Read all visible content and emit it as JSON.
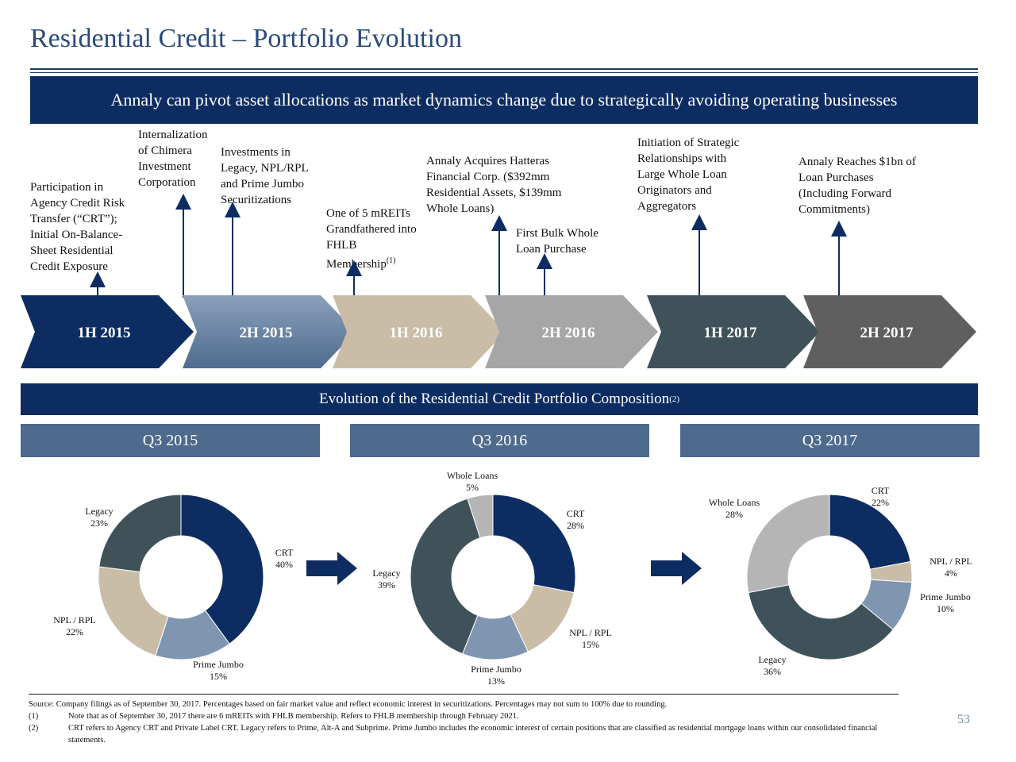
{
  "title": "Residential Credit – Portfolio Evolution",
  "banner": "Annaly can pivot asset allocations as market dynamics change due to strategically avoiding operating businesses",
  "annotations": [
    "Participation in\nAgency Credit Risk\nTransfer (“CRT”);\nInitial On-Balance-\nSheet Residential\nCredit Exposure",
    "Internalization\nof Chimera\nInvestment\nCorporation",
    "Investments in\nLegacy, NPL/RPL\nand Prime Jumbo\nSecuritizations",
    "One of 5 mREITs\nGrandfathered into\nFHLB\nMembership",
    "Annaly Acquires Hatteras\nFinancial Corp. ($392mm\nResidential Assets, $139mm\nWhole Loans)",
    "First Bulk Whole\nLoan Purchase",
    "Initiation of Strategic\nRelationships with\nLarge Whole Loan\nOriginators and\nAggregators",
    "Annaly Reaches $1bn of\nLoan Purchases\n(Including Forward\nCommitments)"
  ],
  "annotation_footnote": "(1)",
  "timeline": [
    {
      "label": "1H 2015",
      "color": "#0d2d62"
    },
    {
      "label": "2H 2015",
      "color": "#6d87a6"
    },
    {
      "label": "1H 2016",
      "color": "#c9bda8"
    },
    {
      "label": "2H 2016",
      "color": "#a6a6a6"
    },
    {
      "label": "1H 2017",
      "color": "#3f5259"
    },
    {
      "label": "2H 2017",
      "color": "#5f5f5f"
    }
  ],
  "section_title": "Evolution of the Residential Credit Portfolio Composition",
  "section_footnote": "(2)",
  "colors": {
    "CRT": "#0d2d62",
    "NPL / RPL": "#c9bda8",
    "Prime Jumbo": "#7f95b0",
    "Legacy": "#3f5259",
    "Whole Loans": "#b5b5b5"
  },
  "charts": [
    {
      "period": "Q3 2015",
      "slices": [
        {
          "name": "CRT",
          "value": 40,
          "label": "40%"
        },
        {
          "name": "Prime Jumbo",
          "value": 15,
          "label": "15%"
        },
        {
          "name": "NPL / RPL",
          "value": 22,
          "label": "22%"
        },
        {
          "name": "Legacy",
          "value": 23,
          "label": "23%"
        }
      ]
    },
    {
      "period": "Q3 2016",
      "slices": [
        {
          "name": "CRT",
          "value": 28,
          "label": "28%"
        },
        {
          "name": "NPL / RPL",
          "value": 15,
          "label": "15%"
        },
        {
          "name": "Prime Jumbo",
          "value": 13,
          "label": "13%"
        },
        {
          "name": "Legacy",
          "value": 39,
          "label": "39%"
        },
        {
          "name": "Whole Loans",
          "value": 5,
          "label": "5%"
        }
      ]
    },
    {
      "period": "Q3 2017",
      "slices": [
        {
          "name": "CRT",
          "value": 22,
          "label": "22%"
        },
        {
          "name": "NPL / RPL",
          "value": 4,
          "label": "4%"
        },
        {
          "name": "Prime Jumbo",
          "value": 10,
          "label": "10%"
        },
        {
          "name": "Legacy",
          "value": 36,
          "label": "36%"
        },
        {
          "name": "Whole Loans",
          "value": 28,
          "label": "28%"
        }
      ]
    }
  ],
  "footnotes": {
    "source": "Source: Company filings as of September 30, 2017. Percentages based on fair market value and reflect economic interest in securitizations. Percentages may not sum to 100% due to rounding.",
    "notes": [
      {
        "num": "(1)",
        "text": "Note that as of September 30, 2017 there are 6 mREITs with FHLB membership. Refers to FHLB membership through February 2021."
      },
      {
        "num": "(2)",
        "text": "CRT refers to Agency CRT and Private Label CRT. Legacy refers to Prime, Alt-A and Subprime. Prime Jumbo includes the economic interest of certain positions that are classified as residential mortgage loans within our consolidated financial statements."
      }
    ]
  },
  "page_number": "53"
}
